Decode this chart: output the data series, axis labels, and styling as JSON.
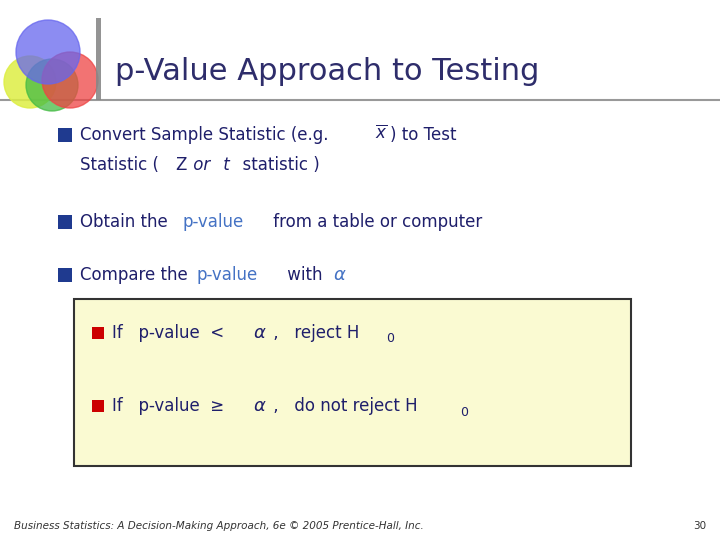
{
  "title": "p-Value Approach to Testing",
  "title_color": "#2E2D6B",
  "title_fontsize": 22,
  "background_color": "#FFFFFF",
  "header_line_color": "#808080",
  "bullet_color": "#1F1F6B",
  "bullet_square_color": "#1F3A8F",
  "red_square_color": "#CC0000",
  "p_value_color": "#4472C4",
  "alpha_color": "#4472C4",
  "box_bg_color": "#FAFAD2",
  "box_border_color": "#333333",
  "footer_text": "Business Statistics: A Decision-Making Approach, 6e © 2005 Prentice-Hall, Inc.",
  "footer_page": "30",
  "footer_color": "#333333",
  "footer_fontsize": 7.5
}
